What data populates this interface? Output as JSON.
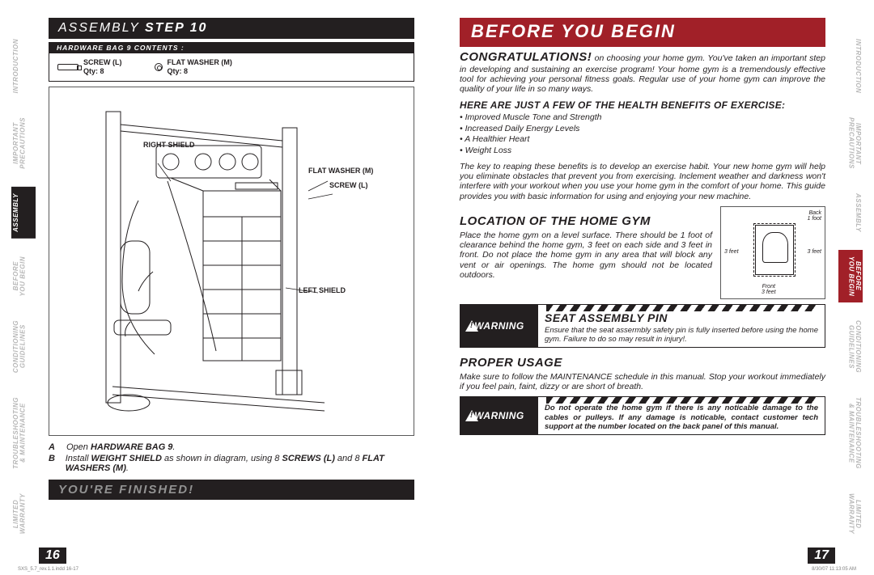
{
  "colors": {
    "black": "#231f20",
    "red": "#a12028",
    "muted": "#929292",
    "tab_inactive": "#b7b7b7",
    "rule": "#5a5a5a",
    "footer_grey": "#808080",
    "white": "#ffffff"
  },
  "tabs": {
    "labels": {
      "intro": "INTRODUCTION",
      "precautions": "IMPORTANT\nPRECAUTIONS",
      "assembly": "ASSEMBLY",
      "before": "BEFORE\nYOU BEGIN",
      "conditioning": "CONDITIONING\nGUIDELINES",
      "troubleshoot": "TROUBLESHOOTING\n& MAINTENANCE",
      "warranty": "LIMITED\nWARRANTY"
    },
    "left_active": "assembly",
    "right_active": "before"
  },
  "left": {
    "header_prefix": "ASSEMBLY ",
    "header_step": "STEP 10",
    "hw_bar": "HARDWARE BAG 9 CONTENTS :",
    "hw": [
      {
        "name": "SCREW (L)",
        "qty": "Qty: 8",
        "icon": "screw"
      },
      {
        "name": "FLAT WASHER (M)",
        "qty": "Qty: 8",
        "icon": "washer"
      }
    ],
    "diagram_labels": {
      "right_shield": "RIGHT SHIELD",
      "flat_washer": "FLAT WASHER (M)",
      "screw": "SCREW (L)",
      "left_shield": "LEFT SHIELD"
    },
    "steps": {
      "a": {
        "letter": "A",
        "html": "Open <b>HARDWARE BAG 9</b>."
      },
      "b": {
        "letter": "B",
        "html": "Install <b>WEIGHT SHIELD</b> as shown in diagram, using 8 <b>SCREWS (L)</b> and 8 <b>FLAT WASHERS (M)</b>."
      }
    },
    "finished": "YOU'RE FINISHED!",
    "page_number": "16"
  },
  "right": {
    "header": "BEFORE YOU BEGIN",
    "congrats_lead": "CONGRATULATIONS!",
    "congrats_body": " on choosing your home gym. You've taken an important step in developing and sustaining an exercise program! Your home gym is a tremendously effective tool for achieving your personal fitness goals. Regular use of your home gym can improve the quality of your life in so many ways.",
    "benefits_head": "HERE ARE JUST A FEW OF THE HEALTH BENEFITS OF EXERCISE:",
    "benefits": [
      "Improved Muscle Tone and Strength",
      "Increased Daily Energy Levels",
      "A Healthier Heart",
      "Weight Loss"
    ],
    "habits_para": "The key to reaping these benefits is to develop an exercise habit. Your new home gym will help you eliminate obstacles that prevent you from exercising. Inclement weather and darkness won't interfere with your workout when you use your home gym in the comfort of your home. This guide provides you with basic information for using and enjoying your new machine.",
    "location": {
      "title": "LOCATION OF THE HOME GYM",
      "body": "Place the home gym on a level surface. There should be 1 foot of clearance behind the home gym, 3 feet on each side and 3 feet in front. Do not place the home gym in any area that will block any vent or air openings. The home gym should not be located outdoors.",
      "fig": {
        "back": "Back\n1 foot",
        "left": "3 feet",
        "right": "3 feet",
        "front": "Front\n3 feet"
      }
    },
    "warn_seat": {
      "badge": "WARNING",
      "title": "SEAT ASSEMBLY PIN",
      "body": "Ensure that the seat assermbly safety pin is fully inserted before using the home gym. Failure to do so may result in injury!."
    },
    "proper": {
      "title": "PROPER USAGE",
      "body": "Make sure to follow the MAINTENANCE schedule in this manual. Stop your workout immediately if you feel pain, faint, dizzy or are short of breath."
    },
    "warn_damage": {
      "badge": "WARNING",
      "body": "Do not operate the home gym if there is any noticable damage to the cables or pulleys. If any damage is noticable, contact customer tech support at the number located on the back panel of this manual."
    },
    "page_number": "17"
  },
  "footer": {
    "left": "SXS_5.7_rev.1.1.indd   16-17",
    "right": "8/30/07   11:13:05 AM"
  }
}
